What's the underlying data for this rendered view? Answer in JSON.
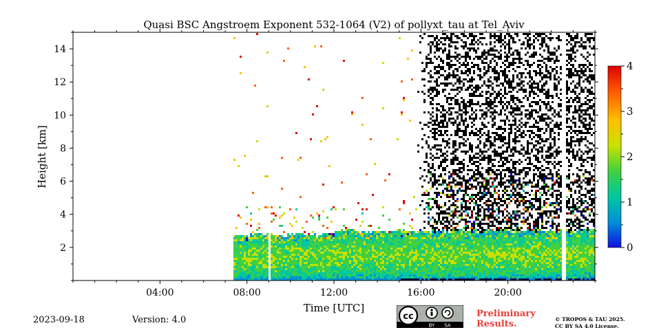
{
  "chart_data": {
    "type": "heatmap",
    "title": "Quasi BSC Angstroem Exponent 532-1064 (V2) of pollyxt_tau at Tel_Aviv",
    "xlabel": "Time [UTC]",
    "ylabel": "Height [km]",
    "x_range_hours": [
      0,
      24
    ],
    "y_range_km": [
      0,
      15
    ],
    "x_ticks": [
      4,
      8,
      12,
      16,
      20
    ],
    "x_tick_labels": [
      "04:00",
      "08:00",
      "12:00",
      "16:00",
      "20:00"
    ],
    "y_ticks": [
      2,
      4,
      6,
      8,
      10,
      12,
      14
    ],
    "y_tick_labels": [
      "2",
      "4",
      "6",
      "8",
      "10",
      "12",
      "14"
    ],
    "colorbar": {
      "range": [
        0,
        4
      ],
      "ticks": [
        0,
        1,
        2,
        3,
        4
      ],
      "tick_labels": [
        "0",
        "1",
        "2",
        "3",
        "4"
      ],
      "colormap": "jet-like",
      "colors": [
        "#1010e0",
        "#0090d8",
        "#00c8a0",
        "#40d040",
        "#c8e000",
        "#ffc000",
        "#ff6000",
        "#e00000"
      ]
    },
    "data_coverage": {
      "measurement_start_hour": 7.35,
      "gaps_hours": [
        [
          8.9,
          9.05
        ],
        [
          22.45,
          22.6
        ]
      ],
      "measurement_end_hour": 24,
      "aerosol_layer_top_km": 3.0,
      "noise_region_start_hour": 15.8,
      "noise_region_color": "#000000",
      "layer_values_typical": [
        1.0,
        2.0
      ]
    }
  },
  "footer": {
    "date": "2023-09-18",
    "version": "Version: 4.0",
    "preliminary_line1": "Preliminary",
    "preliminary_line2": "Results.",
    "copyright_line1": "© TROPOS & TAU 2025.",
    "copyright_line2": "CC BY SA 4.0 License.",
    "license_badge": {
      "cc": "cc",
      "by": "BY",
      "sa": "SA"
    }
  }
}
